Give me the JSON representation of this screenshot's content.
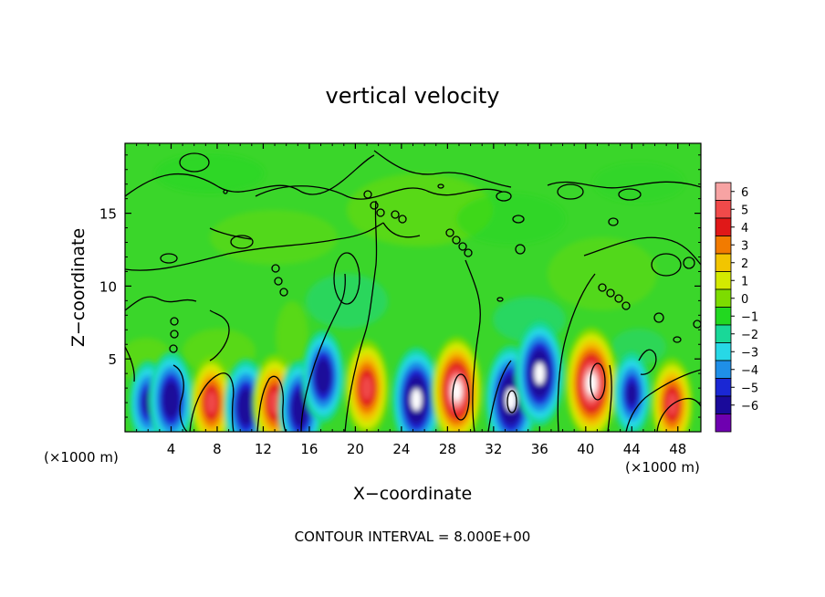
{
  "chart_data": {
    "type": "heatmap",
    "title": "vertical velocity",
    "xlabel": "X−coordinate",
    "ylabel": "Z−coordinate",
    "x_unit_left": "(×1000 m)",
    "x_unit_right": "(×1000 m)",
    "xlim": [
      0,
      50
    ],
    "ylim": [
      0,
      19.8
    ],
    "x_ticks": [
      4,
      8,
      12,
      16,
      20,
      24,
      28,
      32,
      36,
      40,
      44,
      48
    ],
    "y_ticks": [
      5,
      10,
      15
    ],
    "grid": false,
    "colorbar": {
      "levels": [
        "6",
        "5",
        "4",
        "3",
        "2",
        "1",
        "0",
        "−1",
        "−2",
        "−3",
        "−4",
        "−5",
        "−6"
      ],
      "colors": [
        "#f7a3a3",
        "#f04a4a",
        "#e01818",
        "#f27b00",
        "#f2c500",
        "#d4ea00",
        "#7ddc00",
        "#22d820",
        "#19d898",
        "#27d8e6",
        "#1f8fe8",
        "#1a27d4",
        "#1a0a9a",
        "#6e00b0"
      ]
    },
    "cells": [
      {
        "x": 2.0,
        "z": 2.0,
        "w": -3.5
      },
      {
        "x": 4.0,
        "z": 2.2,
        "w": -5.0
      },
      {
        "x": 7.5,
        "z": 2.0,
        "w": 4.5
      },
      {
        "x": 10.5,
        "z": 1.7,
        "w": -5.0
      },
      {
        "x": 13.0,
        "z": 2.0,
        "w": 5.0
      },
      {
        "x": 15.2,
        "z": 1.6,
        "w": -5.0
      },
      {
        "x": 17.2,
        "z": 3.8,
        "w": -4.5
      },
      {
        "x": 21.0,
        "z": 3.0,
        "w": 5.0
      },
      {
        "x": 25.3,
        "z": 2.2,
        "w": -6.0
      },
      {
        "x": 28.8,
        "z": 2.8,
        "w": 6.5
      },
      {
        "x": 33.5,
        "z": 2.2,
        "w": -6.5
      },
      {
        "x": 36.0,
        "z": 4.0,
        "w": -6.0
      },
      {
        "x": 40.5,
        "z": 3.3,
        "w": 7.0
      },
      {
        "x": 44.0,
        "z": 2.6,
        "w": -3.5
      },
      {
        "x": 47.5,
        "z": 1.9,
        "w": 4.5
      }
    ]
  },
  "footer": {
    "contour_interval": "CONTOUR INTERVAL = 8.000E+00"
  }
}
